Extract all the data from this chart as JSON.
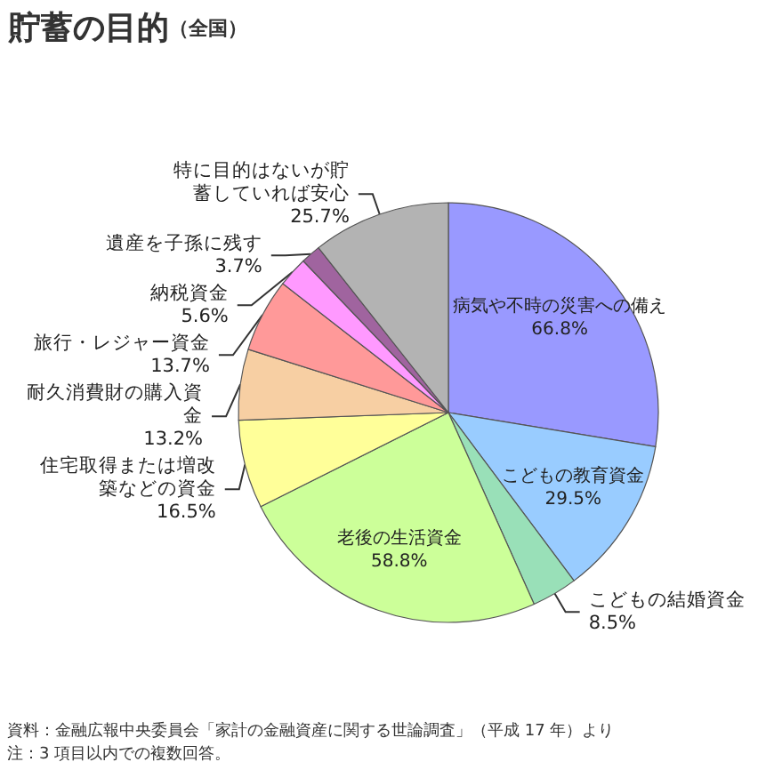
{
  "chart_data": {
    "type": "pie",
    "title": "貯蓄の目的",
    "subtitle": "（全国）",
    "categories": [
      "病気や不時の災害への備え",
      "こどもの教育資金",
      "こどもの結婚資金",
      "老後の生活資金",
      "住宅取得または増改築などの資金",
      "耐久消費財の購入資金",
      "旅行・レジャー資金",
      "納税資金",
      "遺産を子孫に残す",
      "特に目的はないが貯蓄していれば安心"
    ],
    "values": [
      66.8,
      29.5,
      8.5,
      58.8,
      16.5,
      13.2,
      13.7,
      5.6,
      3.7,
      25.7
    ],
    "value_labels": [
      "66.8%",
      "29.5%",
      "8.5%",
      "58.8%",
      "16.5%",
      "13.2%",
      "13.7%",
      "5.6%",
      "3.7%",
      "25.7%"
    ],
    "colors": [
      "#9999ff",
      "#99ccff",
      "#99e0b8",
      "#ccff99",
      "#ffff99",
      "#f7cfa3",
      "#ff9999",
      "#ff99ff",
      "#a0649f",
      "#b3b3b3"
    ],
    "legend": false,
    "annotations": [
      "資料：金融広報中央委員会「家計の金融資産に関する世論調査」（平成 17 年）より",
      "注：3 項目以内での複数回答。"
    ]
  }
}
